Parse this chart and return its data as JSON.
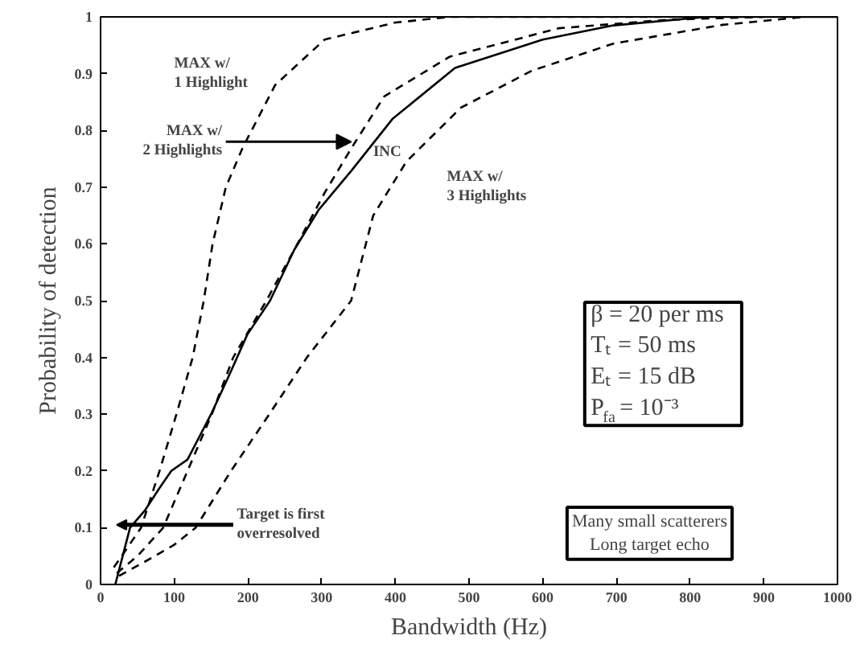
{
  "chart_data": {
    "type": "line",
    "xlabel": "Bandwidth (Hz)",
    "ylabel": "Probability of detection",
    "xlim": [
      0,
      1000
    ],
    "ylim": [
      0,
      1
    ],
    "xticks": [
      0,
      100,
      200,
      300,
      400,
      500,
      600,
      700,
      800,
      900,
      1000
    ],
    "yticks": [
      0,
      0.1,
      0.2,
      0.3,
      0.4,
      0.5,
      0.6,
      0.7,
      0.8,
      0.9,
      1
    ],
    "grid": false,
    "marker": "none",
    "series": [
      {
        "color": "#000000",
        "line_style": "dashed",
        "x": [
          18,
          55,
          80,
          103,
          125,
          140,
          152,
          170,
          193,
          237,
          304,
          400,
          474,
          800
        ],
        "values": [
          0.03,
          0.1,
          0.2,
          0.3,
          0.4,
          0.5,
          0.6,
          0.7,
          0.77,
          0.88,
          0.96,
          0.99,
          1,
          1
        ]
      },
      {
        "color": "#000000",
        "line_style": "solid",
        "x": [
          20,
          40,
          60,
          80,
          96,
          118,
          150,
          175,
          199,
          230,
          263,
          296,
          341,
          396,
          481,
          600,
          696,
          822,
          1000
        ],
        "values": [
          0,
          0.1,
          0.13,
          0.17,
          0.2,
          0.22,
          0.3,
          0.37,
          0.44,
          0.5,
          0.59,
          0.66,
          0.73,
          0.82,
          0.91,
          0.96,
          0.985,
          1,
          1
        ]
      },
      {
        "color": "#000000",
        "line_style": "dashed",
        "x": [
          22,
          50,
          85,
          118,
          151,
          180,
          225,
          263,
          304,
          341,
          385,
          474,
          622,
          770,
          900
        ],
        "values": [
          0.02,
          0.05,
          0.1,
          0.2,
          0.3,
          0.4,
          0.5,
          0.59,
          0.69,
          0.77,
          0.86,
          0.93,
          0.98,
          0.995,
          1
        ]
      },
      {
        "color": "#000000",
        "line_style": "dashed",
        "x": [
          25,
          60,
          100,
          129,
          177,
          229,
          280,
          340,
          370,
          415,
          489,
          585,
          696,
          844,
          956
        ],
        "values": [
          0.015,
          0.04,
          0.07,
          0.1,
          0.2,
          0.3,
          0.4,
          0.5,
          0.65,
          0.745,
          0.84,
          0.905,
          0.953,
          0.986,
          1
        ]
      }
    ],
    "annotations": [
      "MAX w/\n1 Highlight",
      {
        "text": "MAX w/\n2 Highlights",
        "x": 340,
        "y": 0.78
      },
      {
        "text": "INC",
        "x": 370,
        "y": 0.76
      },
      "MAX w/\n3 Highlights",
      "Target is first\noverresolved",
      "β = 20 per ms\nTₜ = 50 ms\nEₜ = 15 dB\nP$_{fa}$ = 10⁻³",
      "Many small scatterers\nLong target echo"
    ]
  }
}
